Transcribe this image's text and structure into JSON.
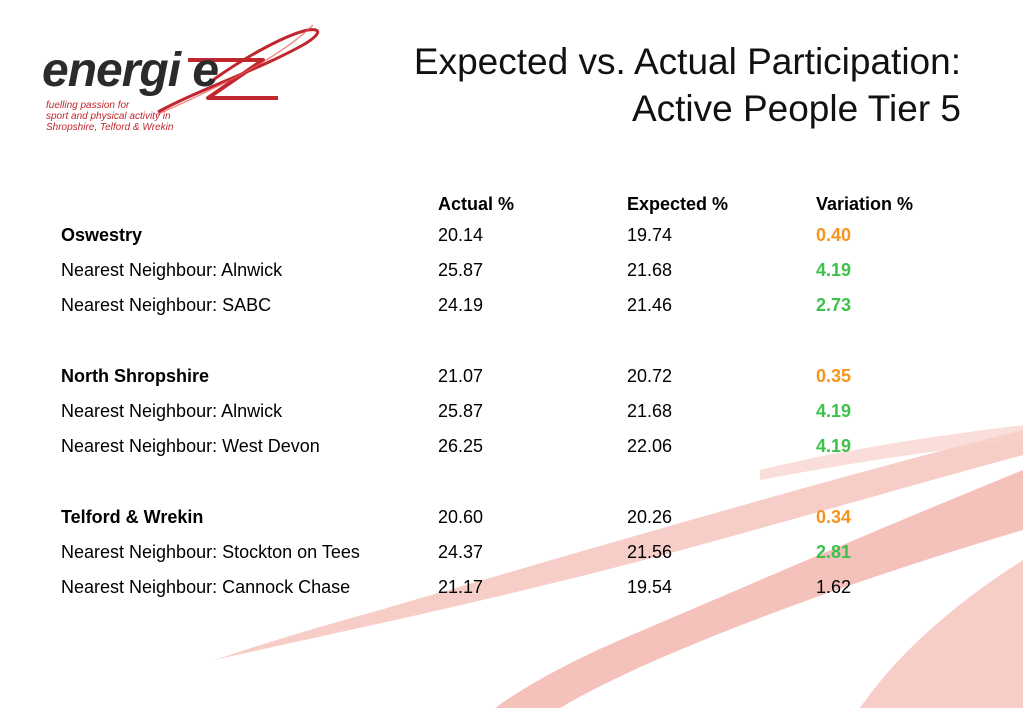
{
  "logo": {
    "word": "energi e",
    "tagline": [
      "fuelling passion for",
      "sport and physical activity in",
      "Shropshire, Telford & Wrekin"
    ],
    "colors": {
      "word": "#2b2b2b",
      "accent": "#c0262d"
    }
  },
  "title": {
    "line1": "Expected vs. Actual Participation:",
    "line2": "Active People Tier 5"
  },
  "table": {
    "headers": {
      "area": "",
      "actual": "Actual %",
      "expected": "Expected %",
      "variation": "Variation %"
    },
    "rows": [
      {
        "area": "Oswestry",
        "actual": "20.14",
        "expected": "19.74",
        "variation": "0.40",
        "bold": true,
        "variation_color": "orange"
      },
      {
        "area": "Nearest Neighbour: Alnwick",
        "actual": "25.87",
        "expected": "21.68",
        "variation": "4.19",
        "bold": false,
        "variation_color": "green"
      },
      {
        "area": "Nearest Neighbour: SABC",
        "actual": "24.19",
        "expected": "21.46",
        "variation": "2.73",
        "bold": false,
        "variation_color": "green"
      },
      {
        "area": "North Shropshire",
        "actual": "21.07",
        "expected": "20.72",
        "variation": "0.35",
        "bold": true,
        "variation_color": "orange"
      },
      {
        "area": "Nearest Neighbour: Alnwick",
        "actual": "25.87",
        "expected": "21.68",
        "variation": "4.19",
        "bold": false,
        "variation_color": "green"
      },
      {
        "area": "Nearest Neighbour: West Devon",
        "actual": "26.25",
        "expected": "22.06",
        "variation": "4.19",
        "bold": false,
        "variation_color": "green"
      },
      {
        "area": "Telford & Wrekin",
        "actual": "20.60",
        "expected": "20.26",
        "variation": "0.34",
        "bold": true,
        "variation_color": "orange"
      },
      {
        "area": "Nearest Neighbour: Stockton on Tees",
        "actual": "24.37",
        "expected": "21.56",
        "variation": "2.81",
        "bold": false,
        "variation_color": "green"
      },
      {
        "area": "Nearest Neighbour: Cannock Chase",
        "actual": "21.17",
        "expected": "19.54",
        "variation": "1.62",
        "bold": false,
        "variation_color": "plain"
      }
    ]
  },
  "colors": {
    "orange": "#f7941d",
    "green": "#3cc24a",
    "swoosh": "#f2b7b0"
  }
}
